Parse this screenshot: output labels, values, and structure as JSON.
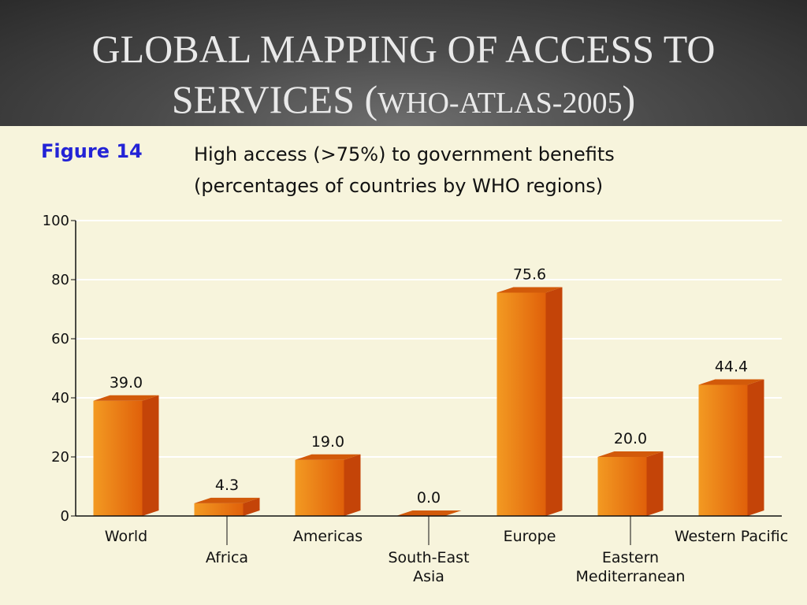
{
  "slide": {
    "title_line1": "GLOBAL MAPPING OF ACCESS TO",
    "title_line2_main": "SERVICES (",
    "title_line2_small": "WHO-ATLAS-2005",
    "title_line2_end": ")"
  },
  "figure": {
    "label": "Figure 14",
    "caption_line1": "High access (>75%) to government benefits",
    "caption_line2": "(percentages of countries by WHO regions)"
  },
  "colors": {
    "bar_front_light": "#f39a22",
    "bar_front_dark": "#e0600a",
    "bar_side": "#c44408",
    "bar_top": "#d25a0a",
    "gridline": "#ffffff",
    "axis": "#111111"
  },
  "chart_data": {
    "type": "bar",
    "categories": [
      "World",
      "Africa",
      "Americas",
      "South-East Asia",
      "Europe",
      "Eastern Mediterranean",
      "Western Pacific"
    ],
    "category_label_lines": [
      [
        "World"
      ],
      [
        "Africa"
      ],
      [
        "Americas"
      ],
      [
        "South-East",
        "Asia"
      ],
      [
        "Europe"
      ],
      [
        "Eastern",
        "Mediterranean"
      ],
      [
        "Western Pacific"
      ]
    ],
    "values": [
      39.0,
      4.3,
      19.0,
      0.0,
      75.6,
      20.0,
      44.4
    ],
    "value_labels": [
      "39.0",
      "4.3",
      "19.0",
      "0.0",
      "75.6",
      "20.0",
      "44.4"
    ],
    "yticks": [
      "0",
      "20",
      "40",
      "60",
      "80",
      "100"
    ],
    "ylim": [
      0,
      100
    ],
    "grid": true,
    "style": "3d-bar"
  }
}
